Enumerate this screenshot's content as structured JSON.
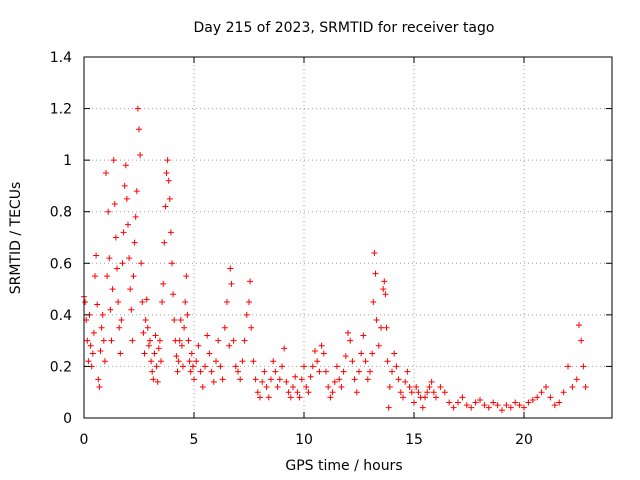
{
  "chart_data": {
    "type": "scatter",
    "title": "Day 215 of 2023, SRMTID for receiver tago",
    "xlabel": "GPS time / hours",
    "ylabel": "SRMTID / TECUs",
    "xlim": [
      0,
      24
    ],
    "ylim": [
      0,
      1.4
    ],
    "xticks": [
      0,
      5,
      10,
      15,
      20
    ],
    "yticks": [
      0,
      0.2,
      0.4,
      0.6,
      0.8,
      1,
      1.2,
      1.4
    ],
    "xtick_labels": [
      "0",
      "5",
      "10",
      "15",
      "20"
    ],
    "ytick_labels": [
      "0",
      "0.2",
      "0.4",
      "0.6",
      "0.8",
      "1",
      "1.2",
      "1.4"
    ],
    "grid": true,
    "marker": "+",
    "color": "#ff0000",
    "series": [
      {
        "name": "SRMTID",
        "points": [
          [
            0.0,
            0.47
          ],
          [
            0.05,
            0.45
          ],
          [
            0.1,
            0.38
          ],
          [
            0.15,
            0.3
          ],
          [
            0.2,
            0.22
          ],
          [
            0.25,
            0.4
          ],
          [
            0.3,
            0.28
          ],
          [
            0.35,
            0.2
          ],
          [
            0.4,
            0.25
          ],
          [
            0.45,
            0.33
          ],
          [
            0.5,
            0.55
          ],
          [
            0.55,
            0.63
          ],
          [
            0.6,
            0.44
          ],
          [
            0.65,
            0.15
          ],
          [
            0.7,
            0.12
          ],
          [
            0.75,
            0.26
          ],
          [
            0.8,
            0.35
          ],
          [
            0.85,
            0.4
          ],
          [
            0.9,
            0.3
          ],
          [
            0.95,
            0.22
          ],
          [
            1.0,
            0.95
          ],
          [
            1.05,
            0.55
          ],
          [
            1.1,
            0.8
          ],
          [
            1.15,
            0.62
          ],
          [
            1.2,
            0.42
          ],
          [
            1.25,
            0.3
          ],
          [
            1.3,
            0.5
          ],
          [
            1.35,
            1.0
          ],
          [
            1.4,
            0.83
          ],
          [
            1.45,
            0.7
          ],
          [
            1.5,
            0.58
          ],
          [
            1.55,
            0.45
          ],
          [
            1.6,
            0.35
          ],
          [
            1.65,
            0.25
          ],
          [
            1.7,
            0.38
          ],
          [
            1.75,
            0.6
          ],
          [
            1.8,
            0.72
          ],
          [
            1.85,
            0.9
          ],
          [
            1.9,
            0.98
          ],
          [
            1.95,
            0.85
          ],
          [
            2.0,
            0.75
          ],
          [
            2.05,
            0.62
          ],
          [
            2.1,
            0.5
          ],
          [
            2.15,
            0.42
          ],
          [
            2.2,
            0.3
          ],
          [
            2.25,
            0.55
          ],
          [
            2.3,
            0.68
          ],
          [
            2.35,
            0.78
          ],
          [
            2.4,
            0.88
          ],
          [
            2.45,
            1.2
          ],
          [
            2.5,
            1.12
          ],
          [
            2.55,
            1.02
          ],
          [
            2.6,
            0.6
          ],
          [
            2.65,
            0.45
          ],
          [
            2.7,
            0.33
          ],
          [
            2.75,
            0.25
          ],
          [
            2.8,
            0.38
          ],
          [
            2.85,
            0.46
          ],
          [
            2.9,
            0.35
          ],
          [
            2.95,
            0.28
          ],
          [
            3.0,
            0.3
          ],
          [
            3.05,
            0.22
          ],
          [
            3.1,
            0.18
          ],
          [
            3.15,
            0.15
          ],
          [
            3.2,
            0.25
          ],
          [
            3.25,
            0.32
          ],
          [
            3.3,
            0.2
          ],
          [
            3.35,
            0.14
          ],
          [
            3.4,
            0.27
          ],
          [
            3.45,
            0.3
          ],
          [
            3.5,
            0.22
          ],
          [
            3.55,
            0.45
          ],
          [
            3.6,
            0.52
          ],
          [
            3.65,
            0.68
          ],
          [
            3.7,
            0.82
          ],
          [
            3.75,
            0.95
          ],
          [
            3.8,
            1.0
          ],
          [
            3.85,
            0.92
          ],
          [
            3.9,
            0.85
          ],
          [
            3.95,
            0.72
          ],
          [
            4.0,
            0.6
          ],
          [
            4.05,
            0.48
          ],
          [
            4.1,
            0.38
          ],
          [
            4.15,
            0.3
          ],
          [
            4.2,
            0.24
          ],
          [
            4.25,
            0.18
          ],
          [
            4.3,
            0.22
          ],
          [
            4.35,
            0.3
          ],
          [
            4.4,
            0.38
          ],
          [
            4.45,
            0.28
          ],
          [
            4.5,
            0.2
          ],
          [
            4.55,
            0.35
          ],
          [
            4.6,
            0.45
          ],
          [
            4.65,
            0.55
          ],
          [
            4.7,
            0.4
          ],
          [
            4.75,
            0.3
          ],
          [
            4.8,
            0.22
          ],
          [
            4.85,
            0.18
          ],
          [
            4.9,
            0.25
          ],
          [
            4.95,
            0.2
          ],
          [
            5.0,
            0.15
          ],
          [
            5.1,
            0.22
          ],
          [
            5.2,
            0.28
          ],
          [
            5.3,
            0.18
          ],
          [
            5.4,
            0.12
          ],
          [
            5.5,
            0.2
          ],
          [
            5.6,
            0.32
          ],
          [
            5.7,
            0.25
          ],
          [
            5.8,
            0.18
          ],
          [
            5.9,
            0.14
          ],
          [
            6.0,
            0.22
          ],
          [
            6.1,
            0.3
          ],
          [
            6.2,
            0.2
          ],
          [
            6.3,
            0.15
          ],
          [
            6.4,
            0.35
          ],
          [
            6.5,
            0.45
          ],
          [
            6.6,
            0.28
          ],
          [
            6.65,
            0.58
          ],
          [
            6.7,
            0.52
          ],
          [
            6.8,
            0.3
          ],
          [
            6.9,
            0.2
          ],
          [
            7.0,
            0.18
          ],
          [
            7.1,
            0.15
          ],
          [
            7.2,
            0.22
          ],
          [
            7.3,
            0.3
          ],
          [
            7.4,
            0.4
          ],
          [
            7.5,
            0.45
          ],
          [
            7.55,
            0.53
          ],
          [
            7.6,
            0.35
          ],
          [
            7.7,
            0.22
          ],
          [
            7.8,
            0.15
          ],
          [
            7.9,
            0.1
          ],
          [
            8.0,
            0.08
          ],
          [
            8.1,
            0.14
          ],
          [
            8.2,
            0.18
          ],
          [
            8.3,
            0.12
          ],
          [
            8.4,
            0.08
          ],
          [
            8.5,
            0.15
          ],
          [
            8.6,
            0.22
          ],
          [
            8.7,
            0.18
          ],
          [
            8.8,
            0.12
          ],
          [
            8.9,
            0.15
          ],
          [
            9.0,
            0.2
          ],
          [
            9.1,
            0.27
          ],
          [
            9.2,
            0.14
          ],
          [
            9.3,
            0.1
          ],
          [
            9.4,
            0.08
          ],
          [
            9.5,
            0.12
          ],
          [
            9.6,
            0.16
          ],
          [
            9.7,
            0.1
          ],
          [
            9.8,
            0.08
          ],
          [
            9.9,
            0.15
          ],
          [
            10.0,
            0.2
          ],
          [
            10.1,
            0.12
          ],
          [
            10.2,
            0.1
          ],
          [
            10.3,
            0.16
          ],
          [
            10.4,
            0.2
          ],
          [
            10.5,
            0.26
          ],
          [
            10.6,
            0.22
          ],
          [
            10.7,
            0.18
          ],
          [
            10.8,
            0.28
          ],
          [
            10.9,
            0.25
          ],
          [
            11.0,
            0.18
          ],
          [
            11.1,
            0.12
          ],
          [
            11.2,
            0.08
          ],
          [
            11.3,
            0.1
          ],
          [
            11.4,
            0.14
          ],
          [
            11.5,
            0.2
          ],
          [
            11.6,
            0.15
          ],
          [
            11.7,
            0.12
          ],
          [
            11.8,
            0.18
          ],
          [
            11.9,
            0.24
          ],
          [
            12.0,
            0.33
          ],
          [
            12.1,
            0.3
          ],
          [
            12.2,
            0.22
          ],
          [
            12.3,
            0.15
          ],
          [
            12.4,
            0.1
          ],
          [
            12.5,
            0.18
          ],
          [
            12.6,
            0.25
          ],
          [
            12.7,
            0.32
          ],
          [
            12.8,
            0.22
          ],
          [
            12.9,
            0.15
          ],
          [
            13.0,
            0.18
          ],
          [
            13.1,
            0.25
          ],
          [
            13.15,
            0.45
          ],
          [
            13.2,
            0.64
          ],
          [
            13.25,
            0.56
          ],
          [
            13.3,
            0.38
          ],
          [
            13.4,
            0.28
          ],
          [
            13.5,
            0.35
          ],
          [
            13.6,
            0.5
          ],
          [
            13.65,
            0.53
          ],
          [
            13.7,
            0.48
          ],
          [
            13.75,
            0.35
          ],
          [
            13.8,
            0.22
          ],
          [
            13.85,
            0.04
          ],
          [
            13.9,
            0.12
          ],
          [
            14.0,
            0.18
          ],
          [
            14.1,
            0.25
          ],
          [
            14.2,
            0.2
          ],
          [
            14.3,
            0.15
          ],
          [
            14.4,
            0.1
          ],
          [
            14.5,
            0.08
          ],
          [
            14.6,
            0.14
          ],
          [
            14.7,
            0.18
          ],
          [
            14.8,
            0.12
          ],
          [
            14.9,
            0.1
          ],
          [
            15.0,
            0.06
          ],
          [
            15.1,
            0.12
          ],
          [
            15.2,
            0.1
          ],
          [
            15.3,
            0.08
          ],
          [
            15.4,
            0.04
          ],
          [
            15.5,
            0.08
          ],
          [
            15.6,
            0.1
          ],
          [
            15.7,
            0.12
          ],
          [
            15.8,
            0.14
          ],
          [
            15.9,
            0.1
          ],
          [
            16.0,
            0.08
          ],
          [
            16.2,
            0.12
          ],
          [
            16.4,
            0.1
          ],
          [
            16.6,
            0.06
          ],
          [
            16.8,
            0.04
          ],
          [
            17.0,
            0.06
          ],
          [
            17.2,
            0.08
          ],
          [
            17.4,
            0.05
          ],
          [
            17.6,
            0.04
          ],
          [
            17.8,
            0.06
          ],
          [
            18.0,
            0.07
          ],
          [
            18.2,
            0.05
          ],
          [
            18.4,
            0.04
          ],
          [
            18.6,
            0.06
          ],
          [
            18.8,
            0.05
          ],
          [
            19.0,
            0.03
          ],
          [
            19.2,
            0.05
          ],
          [
            19.4,
            0.04
          ],
          [
            19.6,
            0.06
          ],
          [
            19.8,
            0.05
          ],
          [
            20.0,
            0.04
          ],
          [
            20.2,
            0.06
          ],
          [
            20.4,
            0.07
          ],
          [
            20.6,
            0.08
          ],
          [
            20.8,
            0.1
          ],
          [
            21.0,
            0.12
          ],
          [
            21.2,
            0.08
          ],
          [
            21.4,
            0.05
          ],
          [
            21.6,
            0.06
          ],
          [
            21.8,
            0.1
          ],
          [
            22.0,
            0.2
          ],
          [
            22.2,
            0.12
          ],
          [
            22.4,
            0.15
          ],
          [
            22.5,
            0.36
          ],
          [
            22.6,
            0.3
          ],
          [
            22.7,
            0.2
          ],
          [
            22.8,
            0.12
          ]
        ]
      }
    ]
  }
}
